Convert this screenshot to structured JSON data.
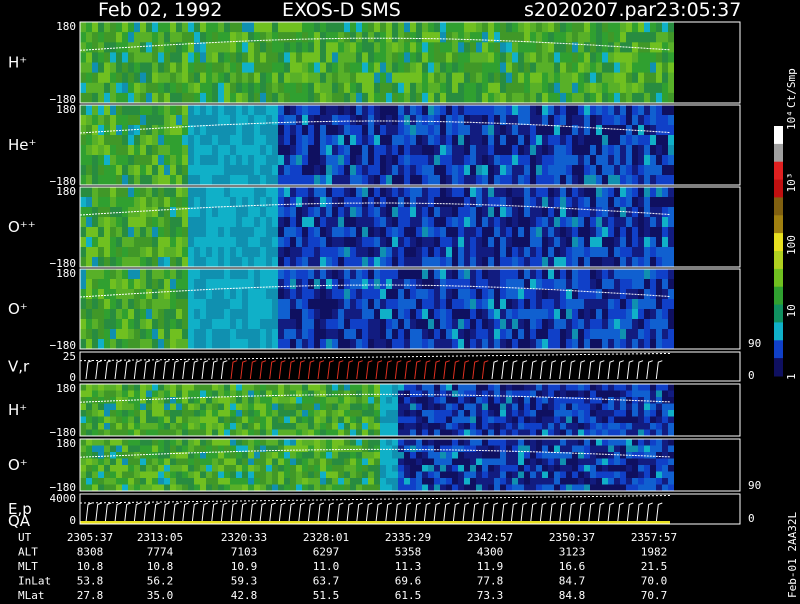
{
  "title": {
    "date": "Feb 02, 1992",
    "instrument": "EXOS-D SMS",
    "file": "s2020207.par",
    "time": "23:05:37"
  },
  "colorbar": {
    "unit": "Ct/Smp",
    "labels": [
      "1",
      "10",
      "100",
      "10³",
      "10⁴"
    ],
    "colors": [
      "#0f1060",
      "#1040c8",
      "#10b0c8",
      "#109060",
      "#30a030",
      "#70c020",
      "#b0d020",
      "#e8e020",
      "#a08010",
      "#806010",
      "#c01010",
      "#e02020",
      "#a0a0a0",
      "#ffffff"
    ]
  },
  "panels": [
    {
      "id": "h-plus",
      "label": "H⁺",
      "ymax": "180",
      "ymin": "−180",
      "style": "pitch"
    },
    {
      "id": "he-plus",
      "label": "He⁺",
      "ymax": "180",
      "ymin": "−180",
      "style": "pitch"
    },
    {
      "id": "o-plus-plus",
      "label": "O⁺⁺",
      "ymax": "180",
      "ymin": "−180",
      "style": "pitch"
    },
    {
      "id": "o-plus",
      "label": "O⁺",
      "ymax": "180",
      "ymin": "−180",
      "style": "pitch",
      "right_tick": "90"
    },
    {
      "id": "v-r",
      "label": "V,r",
      "ymax": "25",
      "ymin": "0",
      "style": "line",
      "right_tick": "0"
    },
    {
      "id": "h-plus-2",
      "label": "H⁺",
      "ymax": "180",
      "ymin": "−180",
      "style": "flat"
    },
    {
      "id": "o-plus-2",
      "label": "O⁺",
      "ymax": "180",
      "ymin": "−180",
      "style": "flat",
      "right_tick": "90"
    },
    {
      "id": "e-p-qa",
      "label": "E,p",
      "label2": "QA",
      "ymax": "4000",
      "ymin": "0",
      "style": "line",
      "right_tick": "0"
    }
  ],
  "table": {
    "rows": [
      {
        "label": "UT",
        "values": [
          "2305:37",
          "2313:05",
          "2320:33",
          "2328:01",
          "2335:29",
          "2342:57",
          "2350:37",
          "2357:57"
        ]
      },
      {
        "label": "ALT",
        "values": [
          "8308",
          "7774",
          "7103",
          "6297",
          "5358",
          "4300",
          "3123",
          "1982"
        ]
      },
      {
        "label": "MLT",
        "values": [
          "10.8",
          "10.8",
          "10.9",
          "11.0",
          "11.3",
          "11.9",
          "16.6",
          "21.5"
        ]
      },
      {
        "label": "InLat",
        "values": [
          "53.8",
          "56.2",
          "59.3",
          "63.7",
          "69.6",
          "77.8",
          "84.7",
          "70.0"
        ]
      },
      {
        "label": "MLat",
        "values": [
          "27.8",
          "35.0",
          "42.8",
          "51.5",
          "61.5",
          "73.3",
          "84.8",
          "70.7"
        ]
      }
    ]
  },
  "side_label": "Feb-01 2AA32L",
  "chart_data": {
    "type": "heatmap",
    "title": "Feb 02, 1992   EXOS-D SMS",
    "x_ticks": [
      "2305:37",
      "2313:05",
      "2320:33",
      "2328:01",
      "2335:29",
      "2342:57",
      "2350:37",
      "2357:57"
    ],
    "colorbar_unit": "Ct/Smp",
    "colorbar_ticks": [
      "1",
      "10",
      "100",
      "10³",
      "10⁴"
    ]
  }
}
